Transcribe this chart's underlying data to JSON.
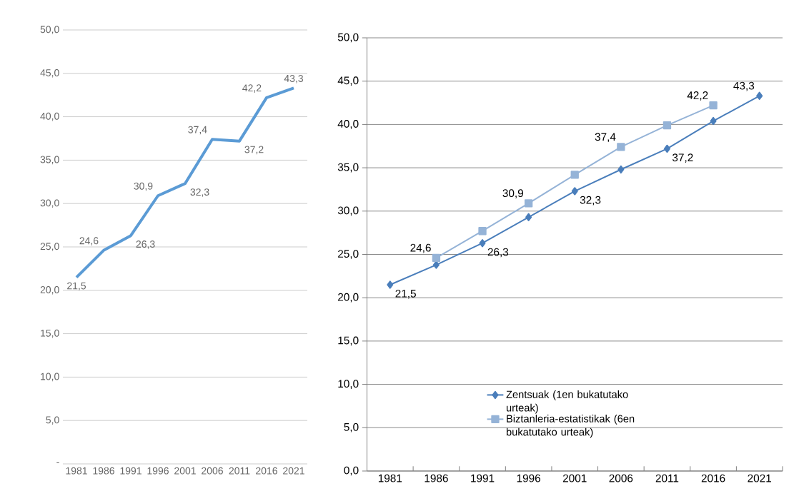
{
  "chart_data": [
    {
      "type": "line",
      "categories": [
        "1981",
        "1986",
        "1991",
        "1996",
        "2001",
        "2006",
        "2011",
        "2016",
        "2021"
      ],
      "series": [
        {
          "color": "#5b9bd5",
          "values": [
            21.5,
            24.6,
            26.3,
            30.9,
            32.3,
            37.4,
            37.2,
            42.2,
            43.3
          ],
          "value_labels": [
            "21,5",
            "24,6",
            "26,3",
            "30,9",
            "32,3",
            "37,4",
            "37,2",
            "42,2",
            "43,3"
          ]
        }
      ],
      "ylim": [
        0,
        50
      ],
      "yticks": [
        {
          "value": 0,
          "label": "-"
        },
        {
          "value": 5,
          "label": "5,0"
        },
        {
          "value": 10,
          "label": "10,0"
        },
        {
          "value": 15,
          "label": "15,0"
        },
        {
          "value": 20,
          "label": "20,0"
        },
        {
          "value": 25,
          "label": "25,0"
        },
        {
          "value": 30,
          "label": "30,0"
        },
        {
          "value": 35,
          "label": "35,0"
        },
        {
          "value": 40,
          "label": "40,0"
        },
        {
          "value": 45,
          "label": "45,0"
        },
        {
          "value": 50,
          "label": "50,0"
        }
      ],
      "grid": "y",
      "legend": false
    },
    {
      "type": "line",
      "categories": [
        "1981",
        "1986",
        "1991",
        "1996",
        "2001",
        "2006",
        "2011",
        "2016",
        "2021"
      ],
      "series": [
        {
          "name": "Zentsuak (1en bukatutako urteak)",
          "color": "#4a7ebb",
          "marker": "diamond",
          "values": [
            21.5,
            23.8,
            26.3,
            29.3,
            32.3,
            34.8,
            37.2,
            40.4,
            43.3
          ],
          "value_labels": [
            "21,5",
            null,
            "26,3",
            null,
            "32,3",
            null,
            "37,2",
            null,
            "43,3"
          ]
        },
        {
          "name": "Biztanleria-estatistikak (6en bukatutako urteak)",
          "color": "#95b3d7",
          "marker": "square",
          "values": [
            null,
            24.6,
            27.7,
            30.9,
            34.2,
            37.4,
            39.9,
            42.2,
            null
          ],
          "value_labels": [
            null,
            "24,6",
            null,
            "30,9",
            null,
            "37,4",
            null,
            "42,2",
            null
          ]
        }
      ],
      "ylim": [
        0,
        50
      ],
      "yticks": [
        {
          "value": 0,
          "label": "0,0"
        },
        {
          "value": 5,
          "label": "5,0"
        },
        {
          "value": 10,
          "label": "10,0"
        },
        {
          "value": 15,
          "label": "15,0"
        },
        {
          "value": 20,
          "label": "20,0"
        },
        {
          "value": 25,
          "label": "25,0"
        },
        {
          "value": 30,
          "label": "30,0"
        },
        {
          "value": 35,
          "label": "35,0"
        },
        {
          "value": 40,
          "label": "40,0"
        },
        {
          "value": 45,
          "label": "45,0"
        },
        {
          "value": 50,
          "label": "50,0"
        }
      ],
      "grid": "y",
      "legend": "bottom"
    }
  ]
}
